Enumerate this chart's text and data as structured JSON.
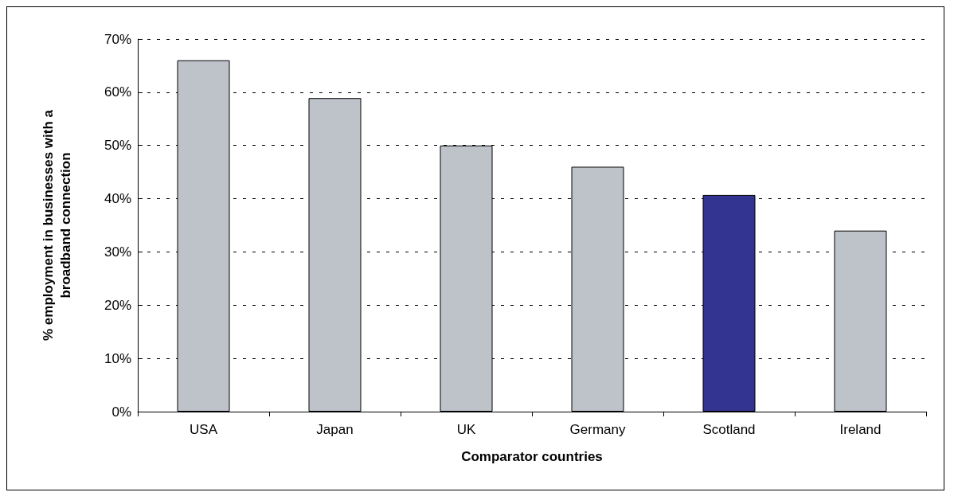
{
  "chart_data": {
    "type": "bar",
    "xlabel": "Comparator countries",
    "ylabel": "% employment in businesses with a broadband connection",
    "categories": [
      "USA",
      "Japan",
      "UK",
      "Germany",
      "Scotland",
      "Ireland"
    ],
    "values": [
      66,
      58.9,
      50,
      46,
      40.7,
      34
    ],
    "colors": [
      "#bec3ca",
      "#bec3ca",
      "#bec3ca",
      "#bec3ca",
      "#333391",
      "#bec3ca"
    ],
    "ylim": [
      0,
      70
    ],
    "yticks": [
      {
        "value": 0,
        "label": "0%"
      },
      {
        "value": 10,
        "label": "10%"
      },
      {
        "value": 20,
        "label": "20%"
      },
      {
        "value": 30,
        "label": "30%"
      },
      {
        "value": 40,
        "label": "40%"
      },
      {
        "value": 50,
        "label": "50%"
      },
      {
        "value": 60,
        "label": "60%"
      },
      {
        "value": 70,
        "label": "70%"
      }
    ],
    "grid": "y"
  }
}
